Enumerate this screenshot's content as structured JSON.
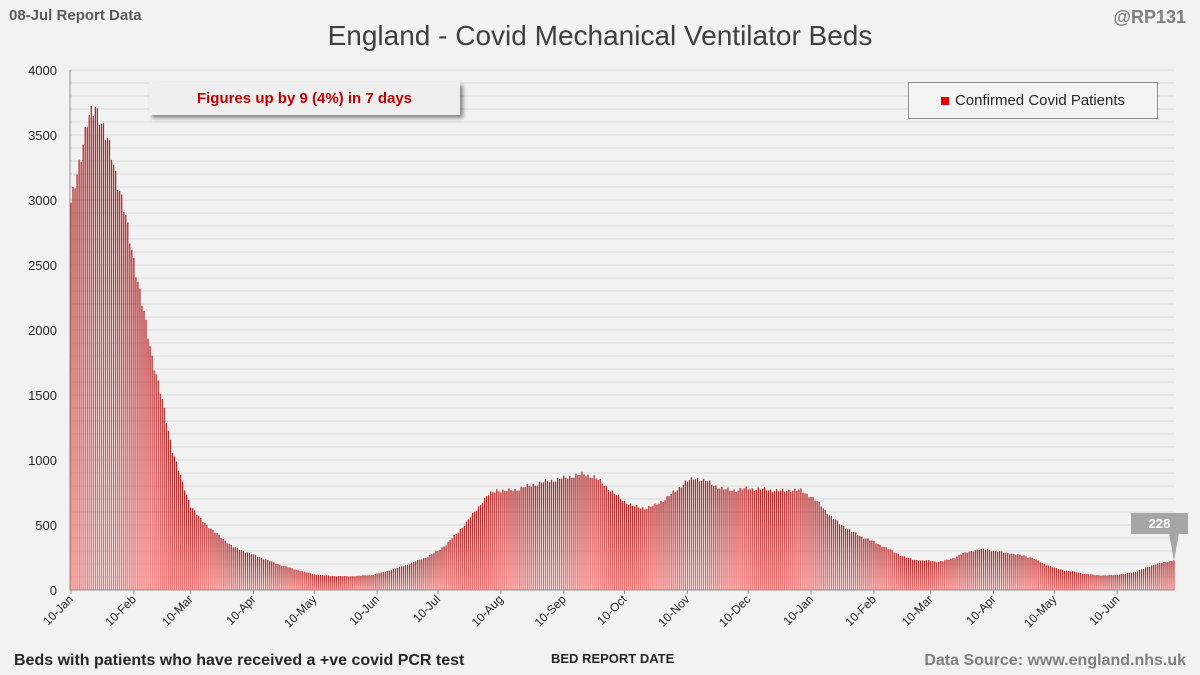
{
  "header": {
    "report_date": "08-Jul Report Data",
    "handle": "@RP131"
  },
  "footer": {
    "note": "Beds with patients who have received a +ve covid PCR test",
    "source": "Data Source: www.england.nhs.uk"
  },
  "annotation": "Figures up by 9 (4%) in 7 days",
  "colors": {
    "bar_top": "#b22222",
    "bar_bottom": "#ff7070",
    "grid": "#d9d9d9",
    "label_box": "#a6a6a6"
  },
  "chart_data": {
    "type": "bar",
    "title": "England - Covid Mechanical Ventilator Beds",
    "xlabel": "BED REPORT DATE",
    "ylabel": "",
    "ylim": [
      0,
      4000
    ],
    "yticks": [
      0,
      500,
      1000,
      1500,
      2000,
      2500,
      3000,
      3500,
      4000
    ],
    "grid": true,
    "legend": {
      "position": "top-right",
      "entries": [
        "Confirmed Covid Patients"
      ]
    },
    "series_name": "Confirmed Covid Patients",
    "start_day_of_year": 10,
    "xtick_labels": [
      "10-Jan",
      "10-Feb",
      "10-Mar",
      "10-Apr",
      "10-May",
      "10-Jun",
      "10-Jul",
      "10-Aug",
      "10-Sep",
      "10-Oct",
      "10-Nov",
      "10-Dec",
      "10-Jan",
      "10-Feb",
      "10-Mar",
      "10-Apr",
      "10-May",
      "10-Jun"
    ],
    "xtick_day_offsets": [
      0,
      31,
      59,
      90,
      120,
      151,
      181,
      212,
      243,
      273,
      304,
      334,
      365,
      396,
      424,
      455,
      485,
      516
    ],
    "last_value_label": "228",
    "daily_keypoints": [
      [
        0,
        2950
      ],
      [
        4,
        3300
      ],
      [
        8,
        3580
      ],
      [
        10,
        3650
      ],
      [
        12,
        3730
      ],
      [
        14,
        3660
      ],
      [
        17,
        3480
      ],
      [
        20,
        3350
      ],
      [
        23,
        3150
      ],
      [
        27,
        2850
      ],
      [
        31,
        2550
      ],
      [
        35,
        2200
      ],
      [
        40,
        1800
      ],
      [
        45,
        1450
      ],
      [
        50,
        1080
      ],
      [
        55,
        820
      ],
      [
        59,
        650
      ],
      [
        63,
        560
      ],
      [
        67,
        500
      ],
      [
        72,
        430
      ],
      [
        80,
        330
      ],
      [
        90,
        270
      ],
      [
        100,
        210
      ],
      [
        110,
        160
      ],
      [
        120,
        120
      ],
      [
        128,
        108
      ],
      [
        138,
        105
      ],
      [
        148,
        115
      ],
      [
        155,
        140
      ],
      [
        165,
        190
      ],
      [
        175,
        250
      ],
      [
        181,
        300
      ],
      [
        185,
        350
      ],
      [
        190,
        430
      ],
      [
        195,
        520
      ],
      [
        200,
        620
      ],
      [
        205,
        720
      ],
      [
        210,
        770
      ],
      [
        214,
        760
      ],
      [
        220,
        775
      ],
      [
        228,
        810
      ],
      [
        236,
        840
      ],
      [
        243,
        860
      ],
      [
        248,
        880
      ],
      [
        253,
        890
      ],
      [
        258,
        870
      ],
      [
        263,
        810
      ],
      [
        268,
        740
      ],
      [
        273,
        680
      ],
      [
        278,
        640
      ],
      [
        283,
        630
      ],
      [
        288,
        650
      ],
      [
        293,
        700
      ],
      [
        298,
        760
      ],
      [
        303,
        830
      ],
      [
        308,
        860
      ],
      [
        313,
        840
      ],
      [
        318,
        800
      ],
      [
        323,
        770
      ],
      [
        328,
        770
      ],
      [
        334,
        780
      ],
      [
        340,
        775
      ],
      [
        345,
        770
      ],
      [
        350,
        760
      ],
      [
        355,
        770
      ],
      [
        360,
        765
      ],
      [
        365,
        720
      ],
      [
        370,
        650
      ],
      [
        375,
        560
      ],
      [
        380,
        500
      ],
      [
        385,
        450
      ],
      [
        390,
        410
      ],
      [
        396,
        370
      ],
      [
        400,
        340
      ],
      [
        405,
        300
      ],
      [
        410,
        260
      ],
      [
        415,
        235
      ],
      [
        420,
        225
      ],
      [
        424,
        225
      ],
      [
        428,
        215
      ],
      [
        432,
        230
      ],
      [
        436,
        250
      ],
      [
        440,
        280
      ],
      [
        444,
        300
      ],
      [
        448,
        310
      ],
      [
        452,
        315
      ],
      [
        455,
        300
      ],
      [
        460,
        290
      ],
      [
        465,
        275
      ],
      [
        470,
        265
      ],
      [
        475,
        240
      ],
      [
        480,
        200
      ],
      [
        485,
        170
      ],
      [
        490,
        150
      ],
      [
        495,
        140
      ],
      [
        500,
        125
      ],
      [
        505,
        115
      ],
      [
        510,
        112
      ],
      [
        516,
        118
      ],
      [
        520,
        125
      ],
      [
        525,
        140
      ],
      [
        530,
        170
      ],
      [
        535,
        200
      ],
      [
        540,
        215
      ],
      [
        544,
        228
      ]
    ]
  }
}
